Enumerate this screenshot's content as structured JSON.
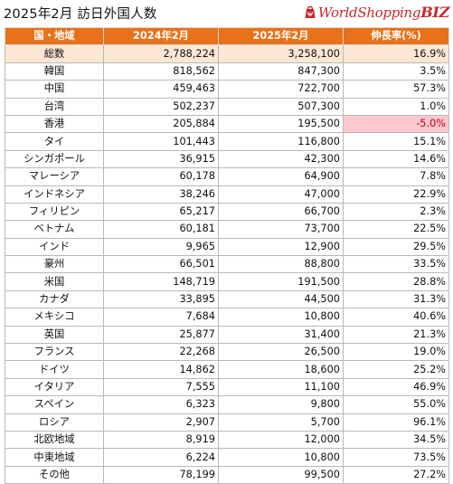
{
  "title": "2025年2月 訪日外国人数",
  "logo": {
    "main": "WorldShopping",
    "suffix": "BIZ"
  },
  "colors": {
    "header_bg": "#e8711a",
    "total_row_bg": "#fce6d4",
    "negative_bg": "#ffc7ce",
    "negative_text": "#c00000",
    "logo": "#c9282d"
  },
  "table": {
    "headers": [
      "国・地域",
      "2024年2月",
      "2025年2月",
      "伸長率(%)"
    ],
    "rows": [
      [
        "総数",
        "2,788,224",
        "3,258,100",
        "16.9%"
      ],
      [
        "韓国",
        "818,562",
        "847,300",
        "3.5%"
      ],
      [
        "中国",
        "459,463",
        "722,700",
        "57.3%"
      ],
      [
        "台湾",
        "502,237",
        "507,300",
        "1.0%"
      ],
      [
        "香港",
        "205,884",
        "195,500",
        "-5.0%"
      ],
      [
        "タイ",
        "101,443",
        "116,800",
        "15.1%"
      ],
      [
        "シンガポール",
        "36,915",
        "42,300",
        "14.6%"
      ],
      [
        "マレーシア",
        "60,178",
        "64,900",
        "7.8%"
      ],
      [
        "インドネシア",
        "38,246",
        "47,000",
        "22.9%"
      ],
      [
        "フィリピン",
        "65,217",
        "66,700",
        "2.3%"
      ],
      [
        "ベトナム",
        "60,181",
        "73,700",
        "22.5%"
      ],
      [
        "インド",
        "9,965",
        "12,900",
        "29.5%"
      ],
      [
        "豪州",
        "66,501",
        "88,800",
        "33.5%"
      ],
      [
        "米国",
        "148,719",
        "191,500",
        "28.8%"
      ],
      [
        "カナダ",
        "33,895",
        "44,500",
        "31.3%"
      ],
      [
        "メキシコ",
        "7,684",
        "10,800",
        "40.6%"
      ],
      [
        "英国",
        "25,877",
        "31,400",
        "21.3%"
      ],
      [
        "フランス",
        "22,268",
        "26,500",
        "19.0%"
      ],
      [
        "ドイツ",
        "14,862",
        "18,600",
        "25.2%"
      ],
      [
        "イタリア",
        "7,555",
        "11,100",
        "46.9%"
      ],
      [
        "スペイン",
        "6,323",
        "9,800",
        "55.0%"
      ],
      [
        "ロシア",
        "2,907",
        "5,700",
        "96.1%"
      ],
      [
        "北欧地域",
        "8,919",
        "12,000",
        "34.5%"
      ],
      [
        "中東地域",
        "6,224",
        "10,800",
        "73.5%"
      ],
      [
        "その他",
        "78,199",
        "99,500",
        "27.2%"
      ]
    ]
  }
}
